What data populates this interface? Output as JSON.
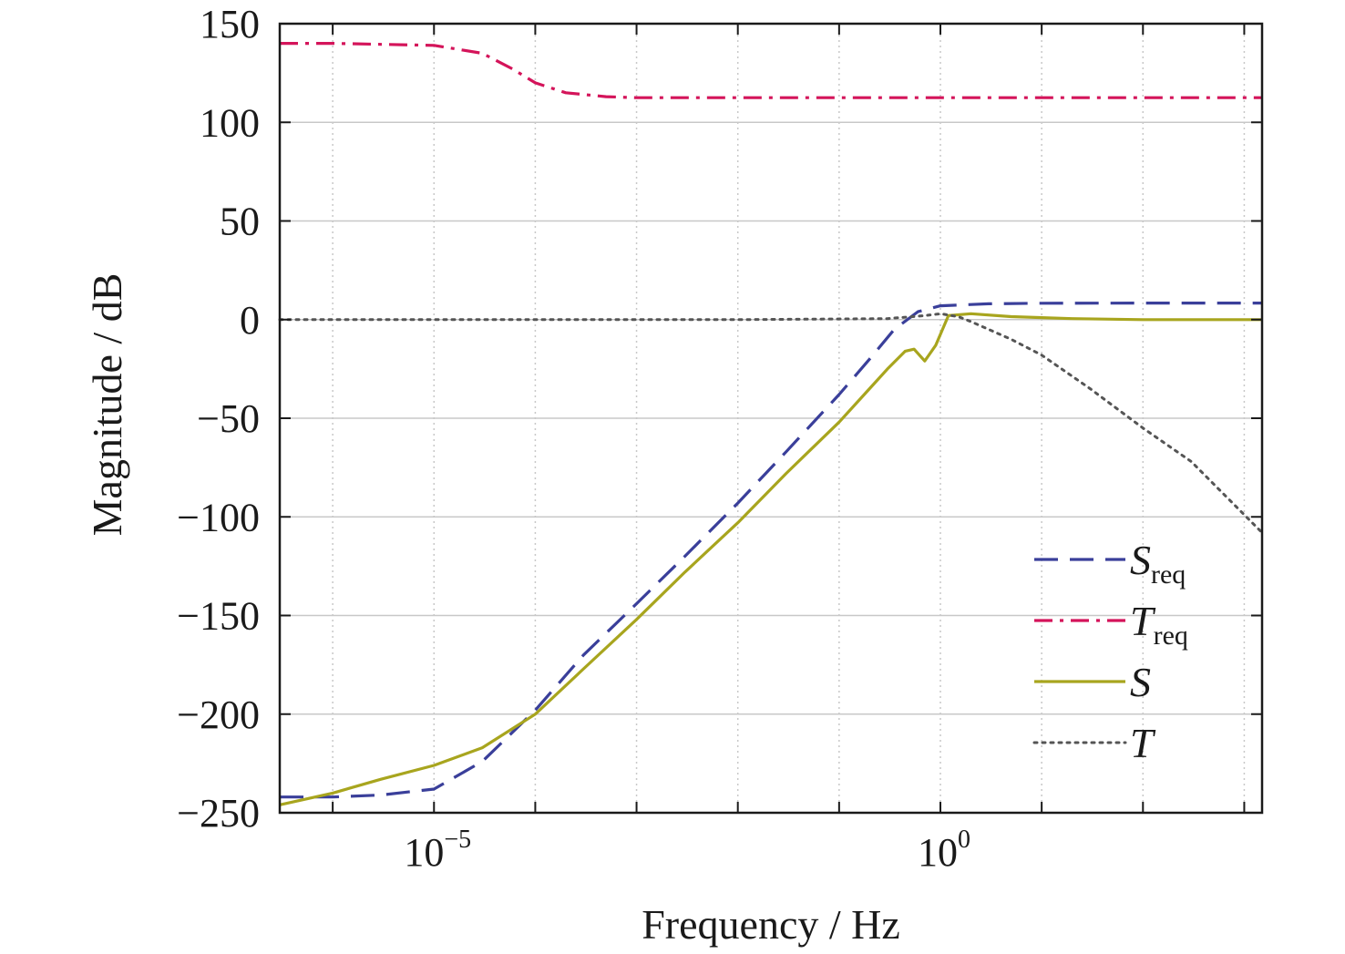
{
  "chart_data": {
    "type": "line",
    "xlabel": "Frequency / Hz",
    "ylabel": "Magnitude / dB",
    "x_scale": "log",
    "xlim": [
      3e-07,
      1500
    ],
    "ylim": [
      -250,
      150
    ],
    "grid": true,
    "y_ticks": [
      {
        "value": 150,
        "label": "150"
      },
      {
        "value": 100,
        "label": "100"
      },
      {
        "value": 50,
        "label": "50"
      },
      {
        "value": 0,
        "label": "0"
      },
      {
        "value": -50,
        "label": "−50"
      },
      {
        "value": -100,
        "label": "−100"
      },
      {
        "value": -150,
        "label": "−150"
      },
      {
        "value": -200,
        "label": "−200"
      },
      {
        "value": -250,
        "label": "−250"
      }
    ],
    "x_ticks": [
      {
        "value": 1e-05,
        "base": "10",
        "exponent": "−5"
      },
      {
        "value": 1,
        "base": "10",
        "exponent": "0"
      }
    ],
    "legend_position": "bottom-right",
    "series": [
      {
        "key": "sreq",
        "name": "S",
        "subscript": "req",
        "color": "#3a3f9a",
        "dash": "dashed",
        "x": [
          3e-07,
          1e-06,
          3e-06,
          1e-05,
          3e-05,
          0.0001,
          0.0003,
          0.001,
          0.003,
          0.01,
          0.03,
          0.1,
          0.2,
          0.35,
          0.6,
          1,
          3,
          10,
          100,
          1500
        ],
        "y": [
          -242,
          -242,
          -241,
          -238,
          -224,
          -198,
          -170,
          -144,
          -120,
          -93,
          -67,
          -38,
          -20,
          -5,
          4,
          7,
          8,
          8.3,
          8.4,
          8.4
        ]
      },
      {
        "key": "treq",
        "name": "T",
        "subscript": "req",
        "color": "#d4145a",
        "dash": "dashdot",
        "x": [
          3e-07,
          1e-06,
          1e-05,
          3e-05,
          6e-05,
          0.0001,
          0.0002,
          0.0005,
          0.001,
          0.01,
          1,
          100,
          1500
        ],
        "y": [
          140,
          140,
          139,
          135,
          127,
          120,
          115,
          113,
          112.5,
          112.5,
          112.5,
          112.5,
          112.5
        ]
      },
      {
        "key": "s",
        "name": "S",
        "subscript": "",
        "color": "#a8a51e",
        "dash": "solid",
        "x": [
          3e-07,
          1e-06,
          3e-06,
          1e-05,
          3e-05,
          0.0001,
          0.0003,
          0.001,
          0.003,
          0.01,
          0.03,
          0.1,
          0.2,
          0.3,
          0.45,
          0.55,
          0.7,
          0.9,
          1.2,
          2,
          5,
          20,
          100,
          1500
        ],
        "y": [
          -246,
          -240,
          -233,
          -226,
          -217,
          -200,
          -177,
          -152,
          -128,
          -103,
          -78,
          -52,
          -35,
          -25,
          -16,
          -15,
          -21,
          -13,
          2,
          3,
          1.5,
          0.5,
          0,
          0
        ]
      },
      {
        "key": "t",
        "name": "T",
        "subscript": "",
        "color": "#555555",
        "dash": "dotted",
        "x": [
          3e-07,
          1e-05,
          0.01,
          0.3,
          0.7,
          1,
          1.5,
          2,
          5,
          10,
          30,
          100,
          300,
          1500
        ],
        "y": [
          0,
          0,
          0,
          0.5,
          2,
          3,
          1.5,
          -1,
          -10,
          -18,
          -35,
          -55,
          -72,
          -108
        ]
      }
    ]
  }
}
